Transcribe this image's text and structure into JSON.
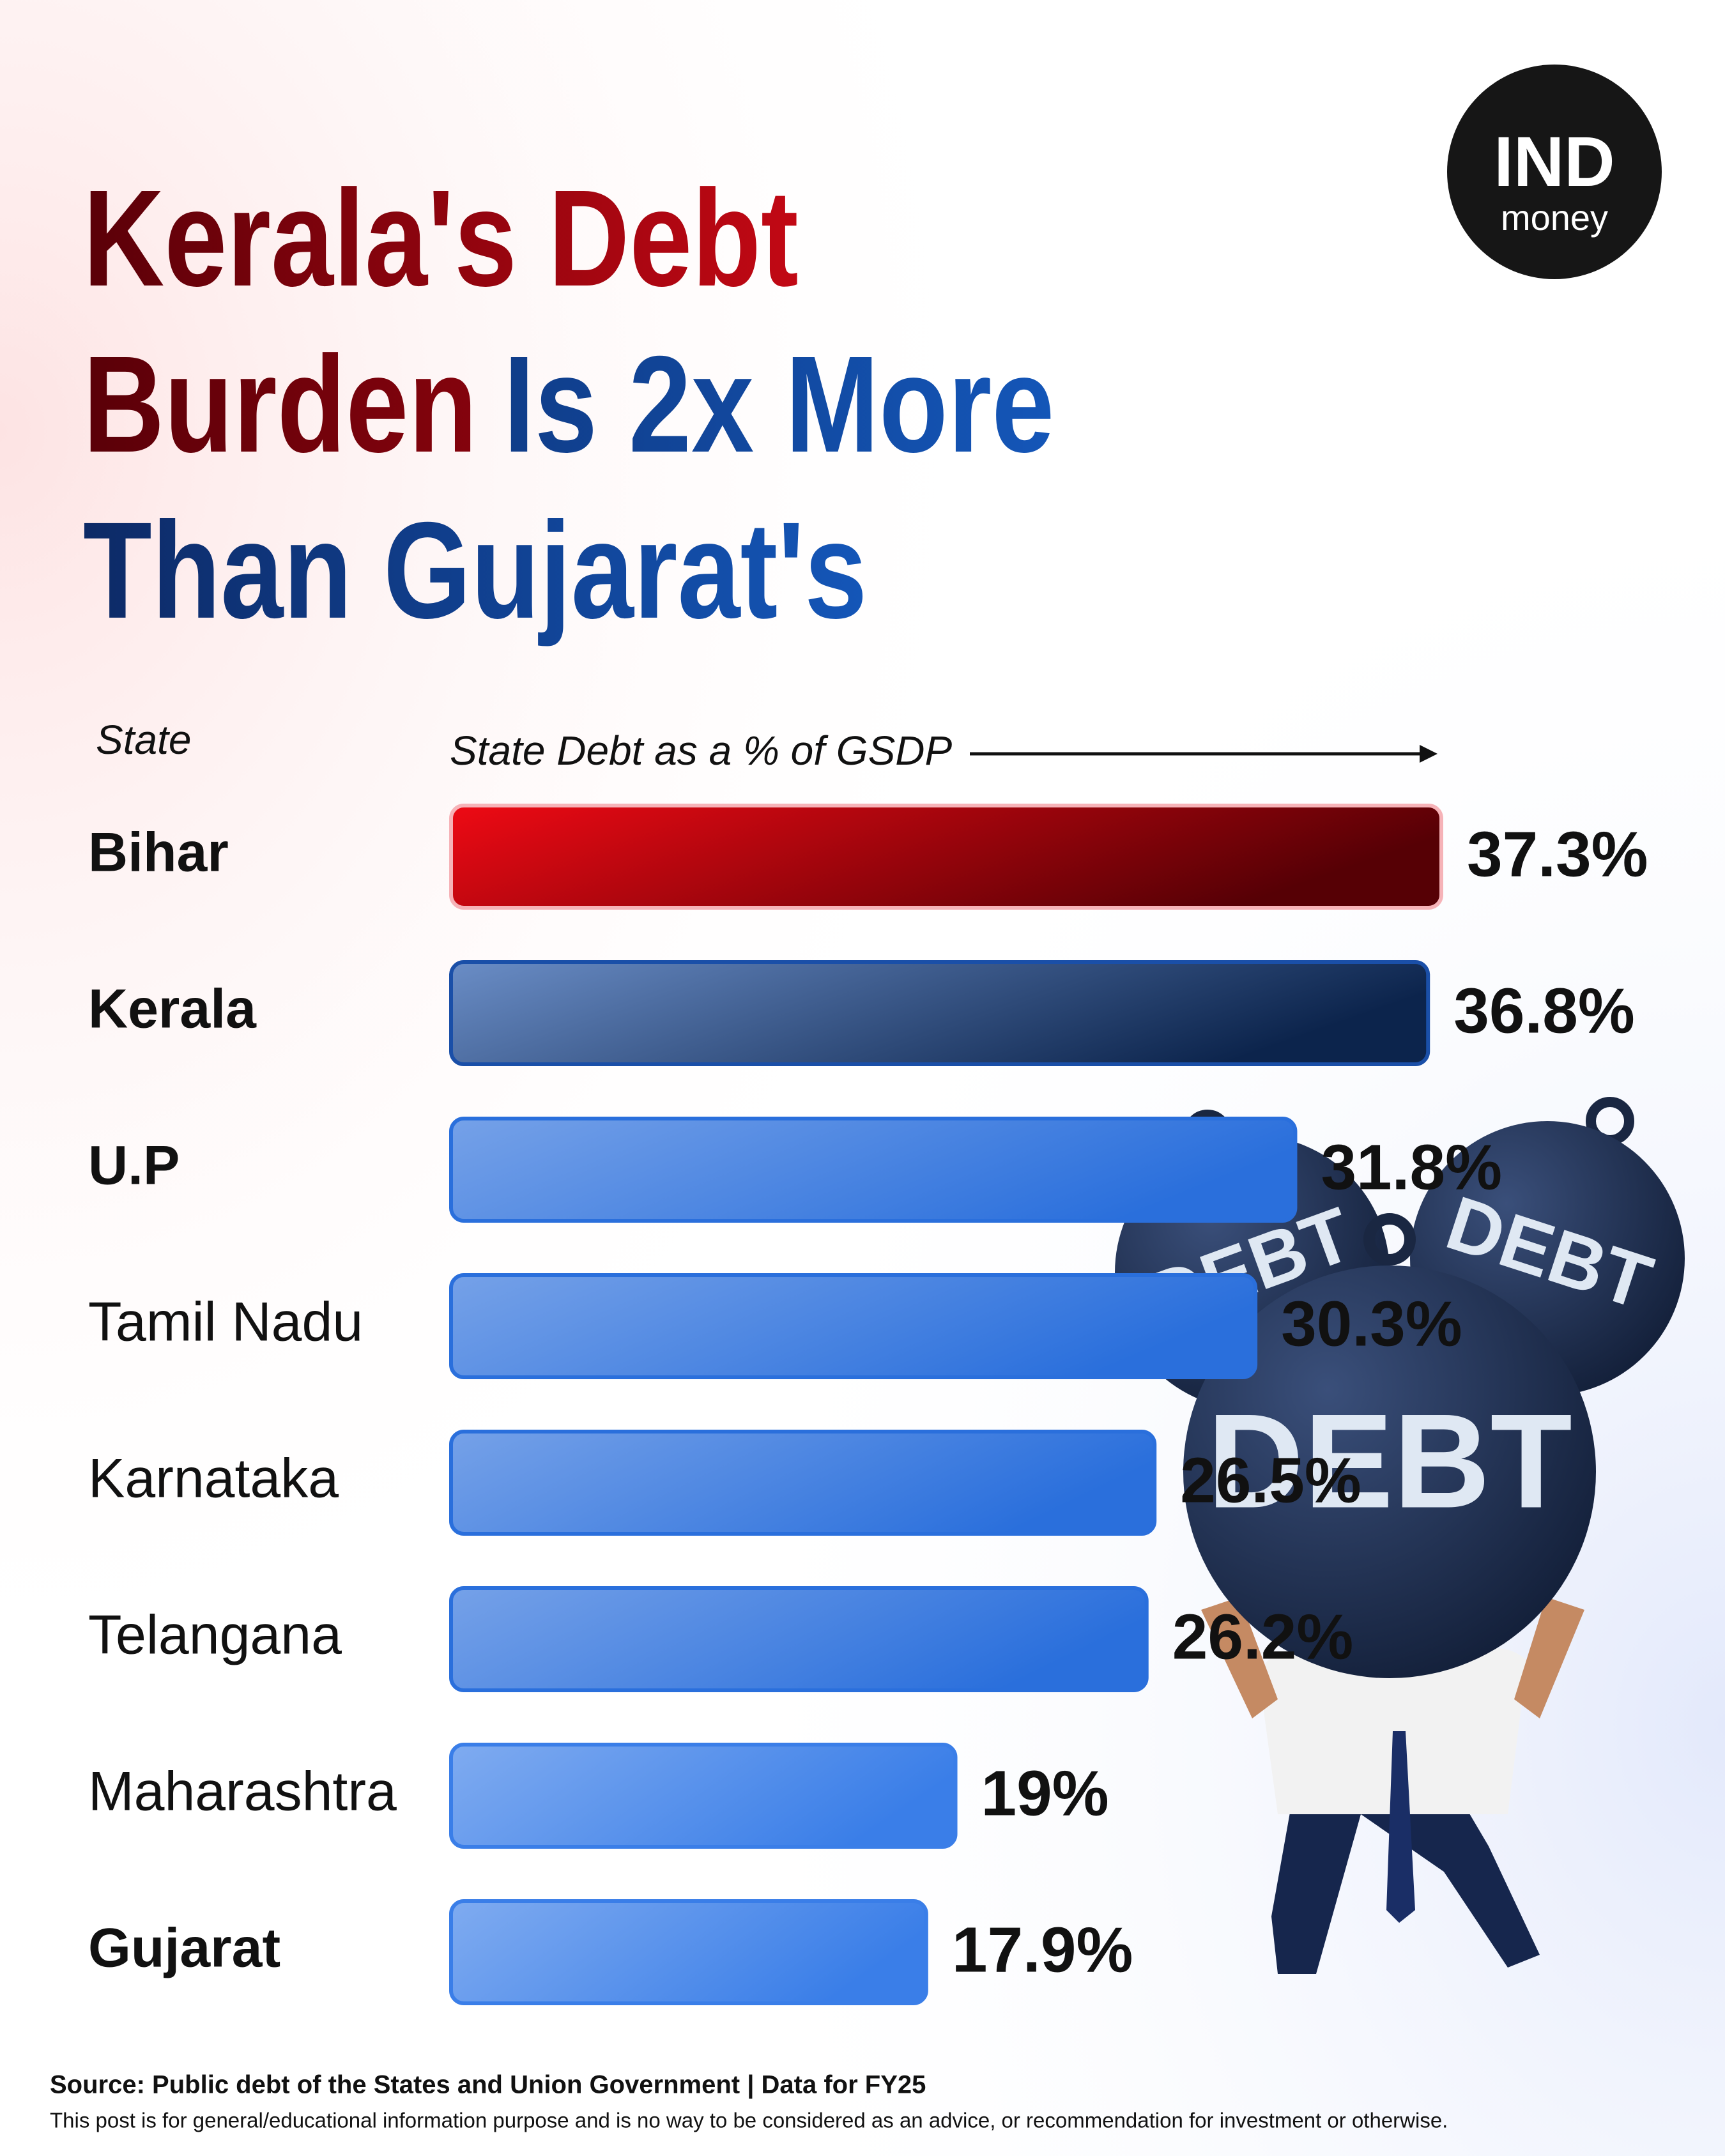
{
  "chart_data": {
    "type": "bar",
    "title_lines": [
      [
        "Kerala's Debt"
      ],
      [
        "Burden",
        "Is 2x More"
      ],
      [
        "Than Gujarat's"
      ]
    ],
    "row_header": "State",
    "value_header": "State Debt as a % of GSDP",
    "categories": [
      "Bihar",
      "Kerala",
      "U.P",
      "Tamil Nadu",
      "Karnataka",
      "Telangana",
      "Maharashtra",
      "Gujarat"
    ],
    "values": [
      37.3,
      36.8,
      31.8,
      30.3,
      26.5,
      26.2,
      19,
      17.9
    ],
    "value_labels": [
      "37.3%",
      "36.8%",
      "31.8%",
      "30.3%",
      "26.5%",
      "26.2%",
      "19%",
      "17.9%"
    ],
    "colors": [
      "#c0000c",
      "#1a4fa8",
      "#2a6fdc",
      "#2a6fdc",
      "#2a6fdc",
      "#2a6fdc",
      "#3a7ee8",
      "#3a7ee8"
    ],
    "source": "Source: Public debt of the States and Union Government | Data for FY25",
    "disclaimer": "This post is for general/educational information purpose and is no way to be considered as an advice, or recommendation for investment or otherwise.",
    "logo": [
      "IND",
      "money"
    ],
    "illustration_labels": [
      "DEBT",
      "DEBT",
      "DEBT"
    ]
  }
}
